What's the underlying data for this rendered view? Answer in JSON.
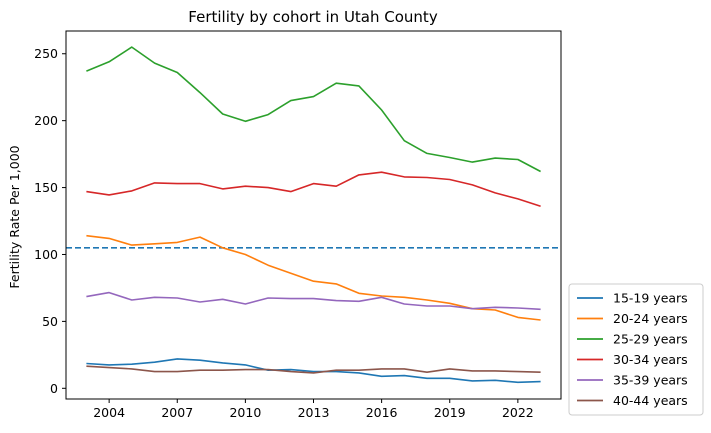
{
  "chart_data": {
    "type": "line",
    "title": "Fertility by cohort in Utah County",
    "xlabel": "",
    "ylabel": "Fertility Rate Per 1,000",
    "xlim": [
      2002.1,
      2023.9
    ],
    "ylim": [
      -8,
      267
    ],
    "xticks": [
      2004,
      2007,
      2010,
      2013,
      2016,
      2019,
      2022
    ],
    "yticks": [
      0,
      50,
      100,
      150,
      200,
      250
    ],
    "grid": false,
    "legend_position": "lower-right-outside",
    "reference_line": {
      "y": 105,
      "style": "dashed",
      "color": "#1f77b4"
    },
    "x": [
      2003,
      2004,
      2005,
      2006,
      2007,
      2008,
      2009,
      2010,
      2011,
      2012,
      2013,
      2014,
      2015,
      2016,
      2017,
      2018,
      2019,
      2020,
      2021,
      2022,
      2023
    ],
    "series": [
      {
        "name": "15-19 years",
        "color": "#1f77b4",
        "values": [
          18.5,
          17.5,
          18,
          19.5,
          22,
          21,
          19,
          17.5,
          13.5,
          14,
          12.5,
          12.5,
          11.5,
          9,
          9.5,
          7.5,
          7.5,
          5.5,
          6,
          4.5,
          5
        ]
      },
      {
        "name": "20-24 years",
        "color": "#ff7f0e",
        "values": [
          114,
          112,
          107,
          108,
          109,
          113,
          105,
          100,
          92,
          86,
          80,
          78,
          71,
          69,
          68,
          66,
          63.5,
          59.5,
          58.5,
          53,
          51
        ]
      },
      {
        "name": "25-29 years",
        "color": "#2ca02c",
        "values": [
          237,
          244,
          255,
          243,
          236,
          221,
          205,
          199.5,
          204.5,
          215,
          218,
          228,
          226,
          208,
          185,
          175.5,
          172.5,
          169,
          172,
          171,
          162
        ]
      },
      {
        "name": "30-34 years",
        "color": "#d62728",
        "values": [
          147,
          144.5,
          147.5,
          153.5,
          153,
          153,
          149,
          151,
          150,
          147,
          153,
          151,
          159.5,
          161.5,
          158,
          157.5,
          156,
          152,
          146,
          141.5,
          136
        ]
      },
      {
        "name": "35-39 years",
        "color": "#9467bd",
        "values": [
          68.5,
          71.5,
          66,
          68,
          67.5,
          64.5,
          66.5,
          63,
          67.5,
          67,
          67,
          65.5,
          65,
          68,
          63,
          61.5,
          61.5,
          59.5,
          60.5,
          60,
          59
        ]
      },
      {
        "name": "40-44 years",
        "color": "#8c564b",
        "values": [
          16.5,
          15.5,
          14.5,
          12.5,
          12.5,
          13.5,
          13.5,
          14,
          14,
          12.5,
          11.5,
          13.5,
          13.5,
          14.5,
          14.5,
          12,
          14.5,
          13,
          13,
          12.5,
          12
        ]
      }
    ]
  }
}
